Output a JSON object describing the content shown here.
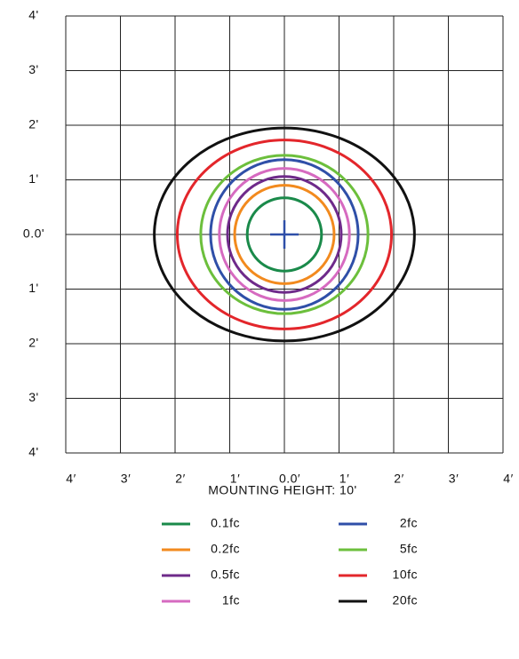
{
  "chart_data": {
    "type": "isocontour",
    "annotation": "MOUNTING HEIGHT: 10'",
    "xlim": [
      -4,
      4
    ],
    "ylim": [
      -4,
      4
    ],
    "xticks": [
      {
        "value": -4,
        "label": "4′"
      },
      {
        "value": -3,
        "label": "3′"
      },
      {
        "value": -2,
        "label": "2′"
      },
      {
        "value": -1,
        "label": "1′"
      },
      {
        "value": 0,
        "label": "0.0′"
      },
      {
        "value": 1,
        "label": "1′"
      },
      {
        "value": 2,
        "label": "2′"
      },
      {
        "value": 3,
        "label": "3′"
      },
      {
        "value": 4,
        "label": "4′"
      }
    ],
    "yticks": [
      {
        "value": 4,
        "label": "4'"
      },
      {
        "value": 3,
        "label": "3'"
      },
      {
        "value": 2,
        "label": "2'"
      },
      {
        "value": 1,
        "label": "1'"
      },
      {
        "value": 0,
        "label": "0.0'"
      },
      {
        "value": -1,
        "label": "1'"
      },
      {
        "value": -2,
        "label": "2'"
      },
      {
        "value": -3,
        "label": "3'"
      },
      {
        "value": -4,
        "label": "4'"
      }
    ],
    "grid": true,
    "series": [
      {
        "name": "0.1fc",
        "color": "#1a8a4a",
        "rx": 0.68,
        "ry": 0.67
      },
      {
        "name": "0.2fc",
        "color": "#f28a1e",
        "rx": 0.91,
        "ry": 0.9
      },
      {
        "name": "0.5fc",
        "color": "#6e2a8a",
        "rx": 1.04,
        "ry": 1.06
      },
      {
        "name": "1fc",
        "color": "#d66ac0",
        "rx": 1.19,
        "ry": 1.21
      },
      {
        "name": "2fc",
        "color": "#2f4fa8",
        "rx": 1.35,
        "ry": 1.37
      },
      {
        "name": "5fc",
        "color": "#6cbf3c",
        "rx": 1.53,
        "ry": 1.45
      },
      {
        "name": "10fc",
        "color": "#e3262b",
        "rx": 1.96,
        "ry": 1.73
      },
      {
        "name": "20fc",
        "color": "#111111",
        "rx": 2.38,
        "ry": 1.95
      }
    ]
  }
}
